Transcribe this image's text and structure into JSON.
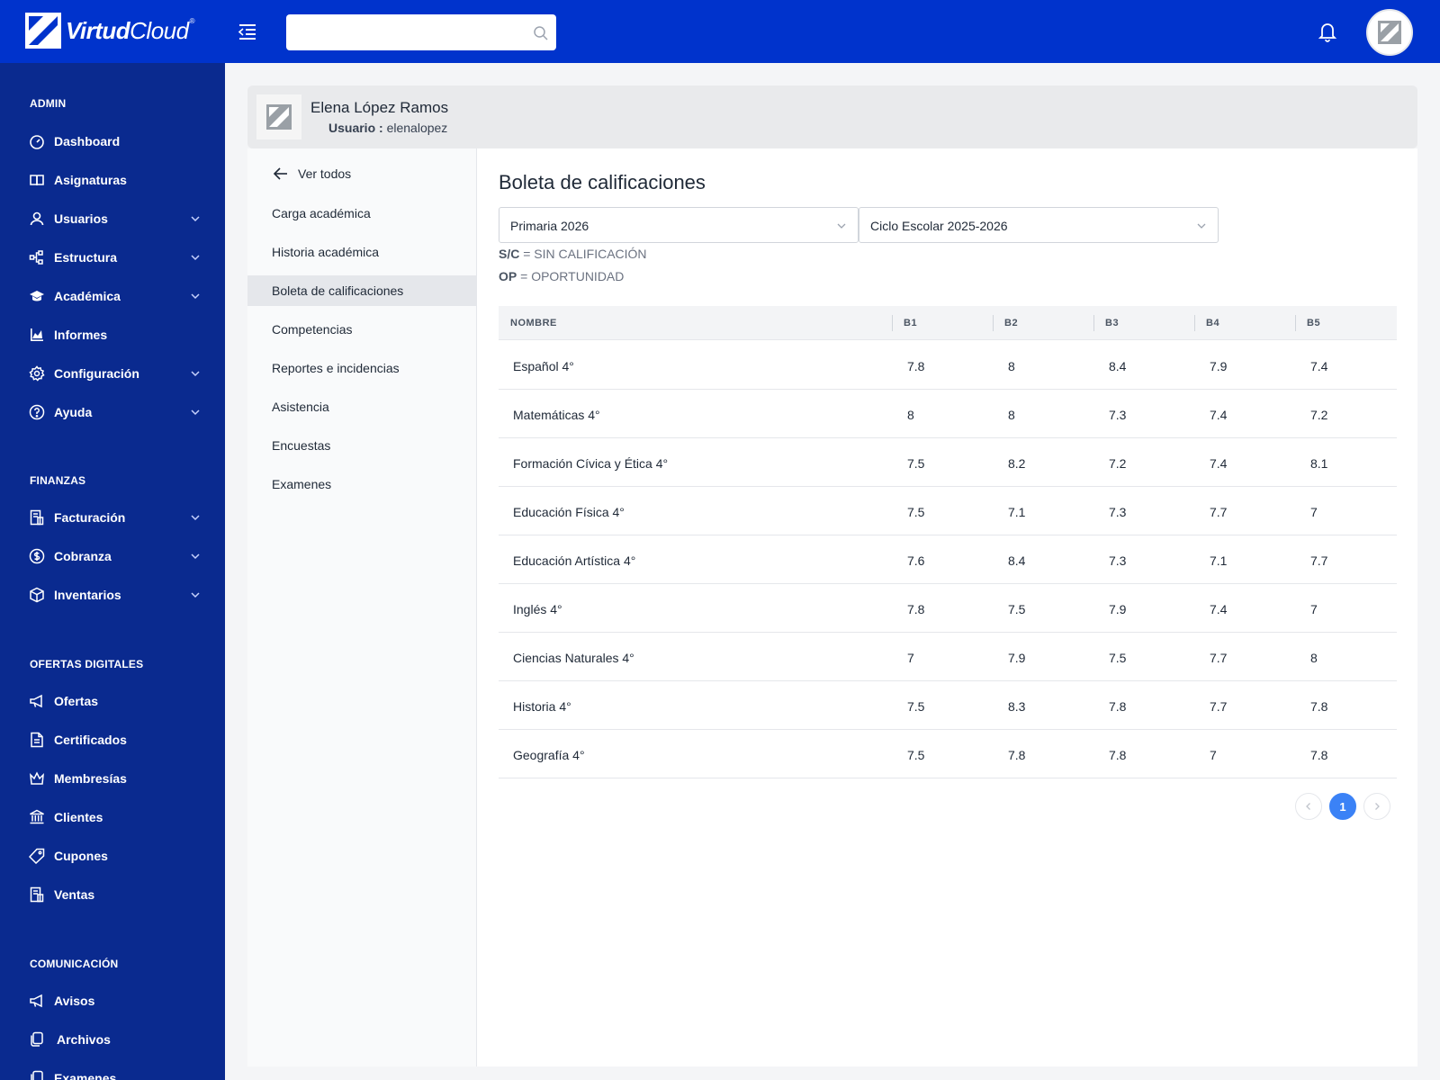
{
  "brand": {
    "name_bold": "Virtud",
    "name_light": "Cloud",
    "mark": "®"
  },
  "search": {
    "placeholder": ""
  },
  "sidebar": {
    "sections": [
      {
        "title": "ADMIN",
        "items": [
          {
            "label": "Dashboard",
            "icon": "dashboard-icon",
            "expandable": false
          },
          {
            "label": "Asignaturas",
            "icon": "book-icon",
            "expandable": false
          },
          {
            "label": "Usuarios",
            "icon": "user-icon",
            "expandable": true
          },
          {
            "label": "Estructura",
            "icon": "structure-icon",
            "expandable": true
          },
          {
            "label": "Académica",
            "icon": "graduation-cap-icon",
            "expandable": true
          },
          {
            "label": "Informes",
            "icon": "chart-icon",
            "expandable": false
          },
          {
            "label": "Configuración",
            "icon": "gear-icon",
            "expandable": true
          },
          {
            "label": "Ayuda",
            "icon": "help-icon",
            "expandable": true
          }
        ]
      },
      {
        "title": "FINANZAS",
        "items": [
          {
            "label": "Facturación",
            "icon": "invoice-icon",
            "expandable": true
          },
          {
            "label": "Cobranza",
            "icon": "dollar-icon",
            "expandable": true
          },
          {
            "label": "Inventarios",
            "icon": "box-icon",
            "expandable": true
          }
        ]
      },
      {
        "title": "OFERTAS DIGITALES",
        "items": [
          {
            "label": "Ofertas",
            "icon": "megaphone-icon",
            "expandable": false
          },
          {
            "label": "Certificados",
            "icon": "document-icon",
            "expandable": false
          },
          {
            "label": "Membresías",
            "icon": "crown-icon",
            "expandable": false
          },
          {
            "label": "Clientes",
            "icon": "bank-icon",
            "expandable": false
          },
          {
            "label": "Cupones",
            "icon": "tag-icon",
            "expandable": false
          },
          {
            "label": "Ventas",
            "icon": "invoice-icon",
            "expandable": false
          }
        ]
      },
      {
        "title": "COMUNICACIÓN",
        "items": [
          {
            "label": "Avisos",
            "icon": "megaphone-icon",
            "expandable": false
          },
          {
            "label": "Archivos",
            "icon": "files-icon",
            "expandable": false
          },
          {
            "label": "Examenes",
            "icon": "files-icon",
            "expandable": false
          }
        ]
      }
    ]
  },
  "profile": {
    "name": "Elena López Ramos",
    "user_label": "Usuario :",
    "username": "elenalopez"
  },
  "subnav": {
    "back_label": "Ver todos",
    "items": [
      {
        "label": "Carga académica",
        "active": false
      },
      {
        "label": "Historia académica",
        "active": false
      },
      {
        "label": "Boleta de calificaciones",
        "active": true
      },
      {
        "label": "Competencias",
        "active": false
      },
      {
        "label": "Reportes e incidencias",
        "active": false
      },
      {
        "label": "Asistencia",
        "active": false
      },
      {
        "label": "Encuestas",
        "active": false
      },
      {
        "label": "Examenes",
        "active": false
      }
    ]
  },
  "main": {
    "title": "Boleta de calificaciones",
    "level_select": "Primaria 2026",
    "cycle_select": "Ciclo Escolar 2025-2026",
    "legend": [
      {
        "code": "S/C",
        "text": " = SIN CALIFICACIÓN"
      },
      {
        "code": "OP",
        "text": " = OPORTUNIDAD"
      }
    ],
    "table": {
      "headers": [
        "NOMBRE",
        "B1",
        "B2",
        "B3",
        "B4",
        "B5"
      ],
      "rows": [
        [
          "Español 4°",
          "7.8",
          "8",
          "8.4",
          "7.9",
          "7.4"
        ],
        [
          "Matemáticas 4°",
          "8",
          "8",
          "7.3",
          "7.4",
          "7.2"
        ],
        [
          "Formación Cívica y Ética 4°",
          "7.5",
          "8.2",
          "7.2",
          "7.4",
          "8.1"
        ],
        [
          "Educación Física 4°",
          "7.5",
          "7.1",
          "7.3",
          "7.7",
          "7"
        ],
        [
          "Educación Artística 4°",
          "7.6",
          "8.4",
          "7.3",
          "7.1",
          "7.7"
        ],
        [
          "Inglés 4°",
          "7.8",
          "7.5",
          "7.9",
          "7.4",
          "7"
        ],
        [
          "Ciencias Naturales 4°",
          "7",
          "7.9",
          "7.5",
          "7.7",
          "8"
        ],
        [
          "Historia 4°",
          "7.5",
          "8.3",
          "7.8",
          "7.7",
          "7.8"
        ],
        [
          "Geografía 4°",
          "7.5",
          "7.8",
          "7.8",
          "7",
          "7.8"
        ]
      ]
    },
    "pagination": {
      "current": "1"
    }
  },
  "colors": {
    "topbar": "#0033cc",
    "sidebar": "#0a2a8f",
    "accent": "#3b82f6"
  }
}
